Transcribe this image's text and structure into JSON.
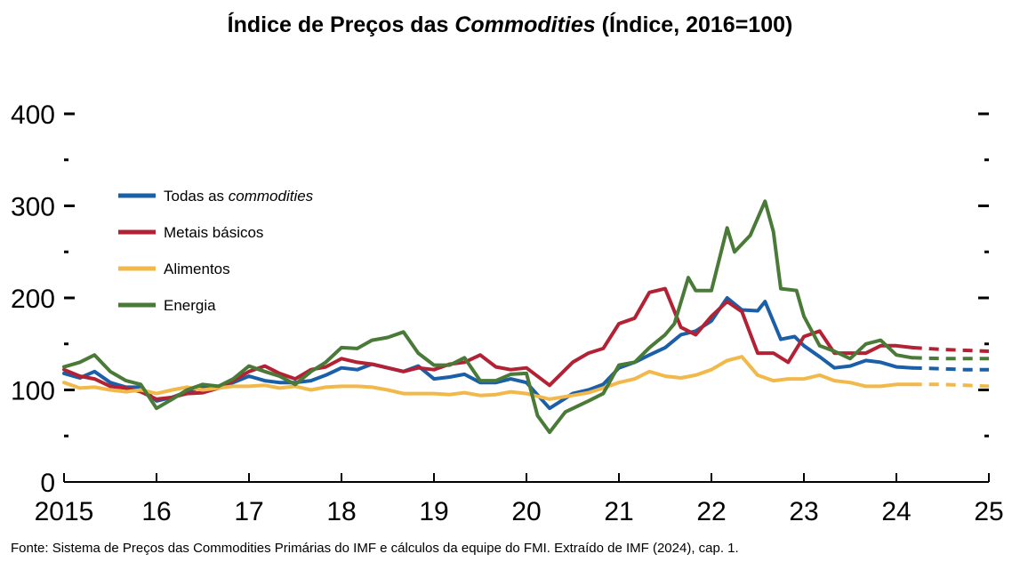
{
  "title": {
    "pre": "Índice de Preços das ",
    "em": "Commodities",
    "post": " (Índice, 2016=100)"
  },
  "source": "Fonte: Sistema de Preços das Commodities Primárias do IMF e cálculos da equipe do FMI. Extraído de IMF (2024), cap. 1.",
  "chart_data": {
    "type": "line",
    "x_ticks": [
      "2015",
      "16",
      "17",
      "18",
      "19",
      "20",
      "21",
      "22",
      "23",
      "24",
      "25"
    ],
    "xlim": [
      2015,
      2025
    ],
    "ylim": [
      0,
      400
    ],
    "y_ticks": [
      0,
      100,
      200,
      300,
      400
    ],
    "y_tick_labels": [
      "0",
      "100",
      "200",
      "300",
      "400"
    ],
    "grid": false,
    "legend_placement": "upper-left",
    "forecast_start": 2024.17,
    "series": [
      {
        "name": "Todas as commodities",
        "name_parts": [
          "Todas as ",
          "commodities"
        ],
        "color": "#1a5fa8",
        "points": [
          [
            2015.0,
            118
          ],
          [
            2015.17,
            113
          ],
          [
            2015.33,
            120
          ],
          [
            2015.5,
            108
          ],
          [
            2015.67,
            103
          ],
          [
            2015.83,
            103
          ],
          [
            2016.0,
            88
          ],
          [
            2016.17,
            92
          ],
          [
            2016.33,
            98
          ],
          [
            2016.5,
            103
          ],
          [
            2016.67,
            104
          ],
          [
            2016.83,
            108
          ],
          [
            2017.0,
            115
          ],
          [
            2017.17,
            110
          ],
          [
            2017.33,
            108
          ],
          [
            2017.5,
            108
          ],
          [
            2017.67,
            110
          ],
          [
            2017.83,
            116
          ],
          [
            2018.0,
            124
          ],
          [
            2018.17,
            122
          ],
          [
            2018.33,
            128
          ],
          [
            2018.5,
            124
          ],
          [
            2018.67,
            120
          ],
          [
            2018.83,
            126
          ],
          [
            2019.0,
            112
          ],
          [
            2019.17,
            114
          ],
          [
            2019.33,
            117
          ],
          [
            2019.5,
            108
          ],
          [
            2019.67,
            108
          ],
          [
            2019.83,
            112
          ],
          [
            2020.0,
            108
          ],
          [
            2020.25,
            80
          ],
          [
            2020.5,
            96
          ],
          [
            2020.67,
            100
          ],
          [
            2020.83,
            106
          ],
          [
            2021.0,
            124
          ],
          [
            2021.17,
            130
          ],
          [
            2021.33,
            138
          ],
          [
            2021.5,
            146
          ],
          [
            2021.67,
            160
          ],
          [
            2021.83,
            164
          ],
          [
            2022.0,
            175
          ],
          [
            2022.17,
            200
          ],
          [
            2022.33,
            187
          ],
          [
            2022.5,
            186
          ],
          [
            2022.58,
            196
          ],
          [
            2022.75,
            155
          ],
          [
            2022.9,
            158
          ],
          [
            2023.0,
            148
          ],
          [
            2023.17,
            136
          ],
          [
            2023.33,
            124
          ],
          [
            2023.5,
            126
          ],
          [
            2023.67,
            132
          ],
          [
            2023.83,
            130
          ],
          [
            2024.0,
            125
          ],
          [
            2024.17,
            124
          ],
          [
            2024.5,
            123
          ],
          [
            2024.75,
            122
          ],
          [
            2025.0,
            122
          ]
        ]
      },
      {
        "name": "Metais básicos",
        "color": "#b22234",
        "points": [
          [
            2015.0,
            122
          ],
          [
            2015.17,
            115
          ],
          [
            2015.33,
            112
          ],
          [
            2015.5,
            104
          ],
          [
            2015.67,
            102
          ],
          [
            2015.83,
            98
          ],
          [
            2016.0,
            90
          ],
          [
            2016.17,
            92
          ],
          [
            2016.33,
            96
          ],
          [
            2016.5,
            97
          ],
          [
            2016.67,
            102
          ],
          [
            2016.83,
            110
          ],
          [
            2017.0,
            120
          ],
          [
            2017.17,
            126
          ],
          [
            2017.33,
            118
          ],
          [
            2017.5,
            112
          ],
          [
            2017.67,
            122
          ],
          [
            2017.83,
            125
          ],
          [
            2018.0,
            134
          ],
          [
            2018.17,
            130
          ],
          [
            2018.33,
            128
          ],
          [
            2018.5,
            124
          ],
          [
            2018.67,
            120
          ],
          [
            2018.83,
            124
          ],
          [
            2019.0,
            122
          ],
          [
            2019.17,
            128
          ],
          [
            2019.33,
            130
          ],
          [
            2019.5,
            138
          ],
          [
            2019.67,
            125
          ],
          [
            2019.83,
            122
          ],
          [
            2020.0,
            124
          ],
          [
            2020.25,
            105
          ],
          [
            2020.5,
            130
          ],
          [
            2020.67,
            140
          ],
          [
            2020.83,
            145
          ],
          [
            2021.0,
            172
          ],
          [
            2021.17,
            178
          ],
          [
            2021.33,
            206
          ],
          [
            2021.5,
            210
          ],
          [
            2021.67,
            168
          ],
          [
            2021.83,
            160
          ],
          [
            2022.0,
            180
          ],
          [
            2022.17,
            196
          ],
          [
            2022.33,
            185
          ],
          [
            2022.5,
            140
          ],
          [
            2022.67,
            140
          ],
          [
            2022.83,
            130
          ],
          [
            2023.0,
            158
          ],
          [
            2023.17,
            164
          ],
          [
            2023.33,
            140
          ],
          [
            2023.5,
            140
          ],
          [
            2023.67,
            140
          ],
          [
            2023.83,
            148
          ],
          [
            2024.0,
            148
          ],
          [
            2024.17,
            146
          ],
          [
            2024.5,
            144
          ],
          [
            2024.75,
            143
          ],
          [
            2025.0,
            142
          ]
        ]
      },
      {
        "name": "Alimentos",
        "color": "#f2b94a",
        "points": [
          [
            2015.0,
            108
          ],
          [
            2015.17,
            102
          ],
          [
            2015.33,
            103
          ],
          [
            2015.5,
            100
          ],
          [
            2015.67,
            98
          ],
          [
            2015.83,
            100
          ],
          [
            2016.0,
            96
          ],
          [
            2016.17,
            100
          ],
          [
            2016.33,
            103
          ],
          [
            2016.5,
            100
          ],
          [
            2016.67,
            102
          ],
          [
            2016.83,
            104
          ],
          [
            2017.0,
            104
          ],
          [
            2017.17,
            105
          ],
          [
            2017.33,
            102
          ],
          [
            2017.5,
            104
          ],
          [
            2017.67,
            100
          ],
          [
            2017.83,
            103
          ],
          [
            2018.0,
            104
          ],
          [
            2018.17,
            104
          ],
          [
            2018.33,
            103
          ],
          [
            2018.5,
            100
          ],
          [
            2018.67,
            96
          ],
          [
            2018.83,
            96
          ],
          [
            2019.0,
            96
          ],
          [
            2019.17,
            95
          ],
          [
            2019.33,
            97
          ],
          [
            2019.5,
            94
          ],
          [
            2019.67,
            95
          ],
          [
            2019.83,
            98
          ],
          [
            2020.0,
            96
          ],
          [
            2020.25,
            90
          ],
          [
            2020.5,
            94
          ],
          [
            2020.67,
            97
          ],
          [
            2020.83,
            102
          ],
          [
            2021.0,
            108
          ],
          [
            2021.17,
            112
          ],
          [
            2021.33,
            120
          ],
          [
            2021.5,
            115
          ],
          [
            2021.67,
            113
          ],
          [
            2021.83,
            116
          ],
          [
            2022.0,
            122
          ],
          [
            2022.17,
            132
          ],
          [
            2022.33,
            136
          ],
          [
            2022.5,
            116
          ],
          [
            2022.67,
            110
          ],
          [
            2022.83,
            112
          ],
          [
            2023.0,
            112
          ],
          [
            2023.17,
            116
          ],
          [
            2023.33,
            110
          ],
          [
            2023.5,
            108
          ],
          [
            2023.67,
            104
          ],
          [
            2023.83,
            104
          ],
          [
            2024.0,
            106
          ],
          [
            2024.17,
            106
          ],
          [
            2024.5,
            106
          ],
          [
            2024.75,
            105
          ],
          [
            2025.0,
            104
          ]
        ]
      },
      {
        "name": "Energia",
        "color": "#4a7a37",
        "points": [
          [
            2015.0,
            125
          ],
          [
            2015.17,
            130
          ],
          [
            2015.33,
            138
          ],
          [
            2015.5,
            120
          ],
          [
            2015.67,
            110
          ],
          [
            2015.83,
            106
          ],
          [
            2016.0,
            80
          ],
          [
            2016.17,
            90
          ],
          [
            2016.33,
            100
          ],
          [
            2016.5,
            106
          ],
          [
            2016.67,
            104
          ],
          [
            2016.83,
            112
          ],
          [
            2017.0,
            126
          ],
          [
            2017.17,
            120
          ],
          [
            2017.33,
            115
          ],
          [
            2017.5,
            106
          ],
          [
            2017.67,
            120
          ],
          [
            2017.83,
            130
          ],
          [
            2018.0,
            146
          ],
          [
            2018.17,
            145
          ],
          [
            2018.33,
            154
          ],
          [
            2018.5,
            157
          ],
          [
            2018.67,
            163
          ],
          [
            2018.83,
            140
          ],
          [
            2019.0,
            127
          ],
          [
            2019.17,
            127
          ],
          [
            2019.33,
            135
          ],
          [
            2019.5,
            110
          ],
          [
            2019.67,
            110
          ],
          [
            2019.83,
            117
          ],
          [
            2020.0,
            118
          ],
          [
            2020.12,
            72
          ],
          [
            2020.25,
            54
          ],
          [
            2020.42,
            76
          ],
          [
            2020.67,
            88
          ],
          [
            2020.83,
            96
          ],
          [
            2021.0,
            127
          ],
          [
            2021.17,
            130
          ],
          [
            2021.33,
            146
          ],
          [
            2021.5,
            160
          ],
          [
            2021.6,
            172
          ],
          [
            2021.75,
            222
          ],
          [
            2021.83,
            208
          ],
          [
            2022.0,
            208
          ],
          [
            2022.17,
            276
          ],
          [
            2022.25,
            250
          ],
          [
            2022.42,
            268
          ],
          [
            2022.58,
            305
          ],
          [
            2022.67,
            272
          ],
          [
            2022.75,
            210
          ],
          [
            2022.92,
            208
          ],
          [
            2023.0,
            180
          ],
          [
            2023.17,
            148
          ],
          [
            2023.33,
            142
          ],
          [
            2023.5,
            134
          ],
          [
            2023.67,
            150
          ],
          [
            2023.83,
            154
          ],
          [
            2024.0,
            138
          ],
          [
            2024.17,
            135
          ],
          [
            2024.5,
            134
          ],
          [
            2024.75,
            134
          ],
          [
            2025.0,
            134
          ]
        ]
      }
    ]
  }
}
